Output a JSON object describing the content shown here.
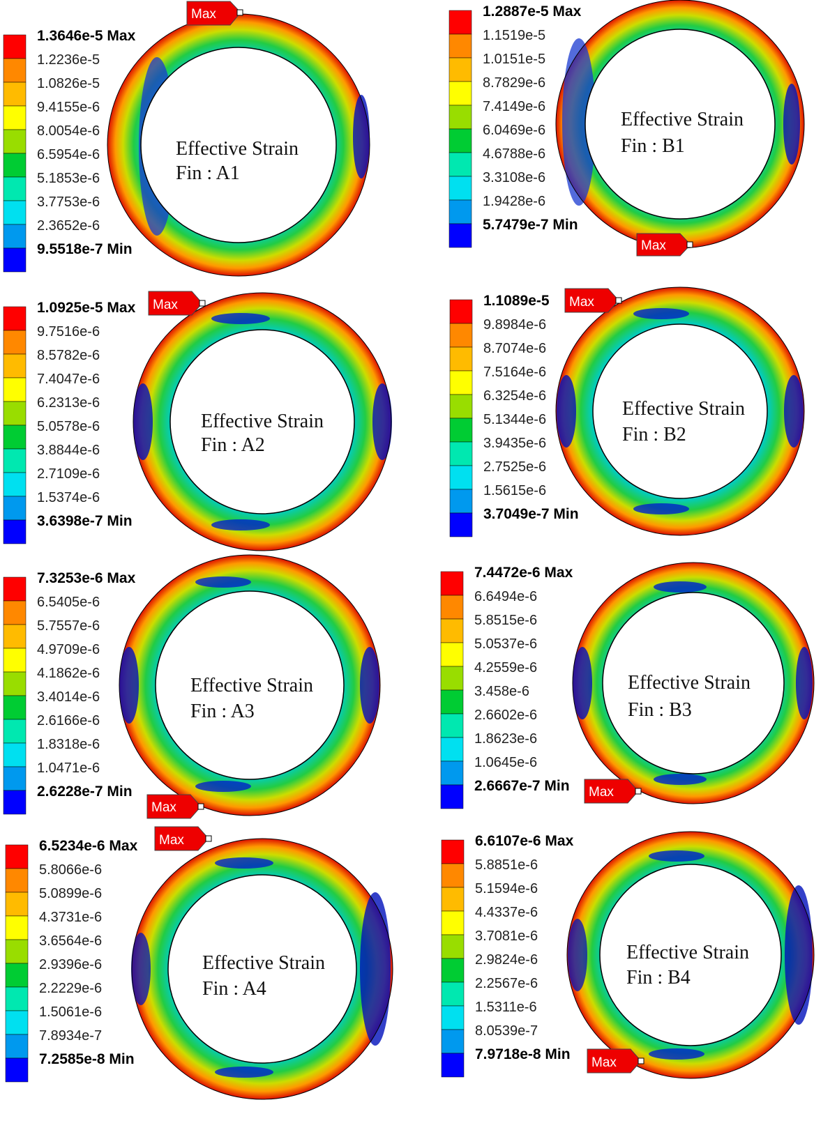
{
  "colors": [
    "#0000ff",
    "#0099ee",
    "#00e0f0",
    "#00e8b0",
    "#00cc33",
    "#99dd00",
    "#ffff00",
    "#ffbb00",
    "#ff8800",
    "#ff0000"
  ],
  "panels": [
    {
      "id": "A1",
      "title": "Effective Strain",
      "fin": "Fin : A1",
      "max_tag": "Max",
      "labels": [
        "1.3646e-5 Max",
        "1.2236e-5",
        "1.0826e-5",
        "9.4155e-6",
        "8.0054e-6",
        "6.5954e-6",
        "5.1853e-6",
        "3.7753e-6",
        "2.3652e-6",
        "9.5518e-7 Min"
      ]
    },
    {
      "id": "B1",
      "title": "Effective Strain",
      "fin": "Fin : B1",
      "max_tag": "Max",
      "labels": [
        "1.2887e-5 Max",
        "1.1519e-5",
        "1.0151e-5",
        "8.7829e-6",
        "7.4149e-6",
        "6.0469e-6",
        "4.6788e-6",
        "3.3108e-6",
        "1.9428e-6",
        "5.7479e-7 Min"
      ]
    },
    {
      "id": "A2",
      "title": "Effective Strain",
      "fin": "Fin : A2",
      "max_tag": "Max",
      "labels": [
        "1.0925e-5 Max",
        "9.7516e-6",
        "8.5782e-6",
        "7.4047e-6",
        "6.2313e-6",
        "5.0578e-6",
        "3.8844e-6",
        "2.7109e-6",
        "1.5374e-6",
        "3.6398e-7 Min"
      ]
    },
    {
      "id": "B2",
      "title": "Effective Strain",
      "fin": "Fin : B2",
      "max_tag": "Max",
      "labels": [
        "1.1089e-5",
        "9.8984e-6",
        "8.7074e-6",
        "7.5164e-6",
        "6.3254e-6",
        "5.1344e-6",
        "3.9435e-6",
        "2.7525e-6",
        "1.5615e-6",
        "3.7049e-7 Min"
      ]
    },
    {
      "id": "A3",
      "title": "Effective Strain",
      "fin": "Fin : A3",
      "max_tag": "Max",
      "labels": [
        "7.3253e-6 Max",
        "6.5405e-6",
        "5.7557e-6",
        "4.9709e-6",
        "4.1862e-6",
        "3.4014e-6",
        "2.6166e-6",
        "1.8318e-6",
        "1.0471e-6",
        "2.6228e-7 Min"
      ]
    },
    {
      "id": "B3",
      "title": "Effective Strain",
      "fin": "Fin : B3",
      "max_tag": "Max",
      "labels": [
        "7.4472e-6 Max",
        "6.6494e-6",
        "5.8515e-6",
        "5.0537e-6",
        "4.2559e-6",
        "3.458e-6",
        "2.6602e-6",
        "1.8623e-6",
        "1.0645e-6",
        "2.6667e-7 Min"
      ]
    },
    {
      "id": "A4",
      "title": "Effective Strain",
      "fin": "Fin : A4",
      "max_tag": "Max",
      "labels": [
        "6.5234e-6 Max",
        "5.8066e-6",
        "5.0899e-6",
        "4.3731e-6",
        "3.6564e-6",
        "2.9396e-6",
        "2.2229e-6",
        "1.5061e-6",
        "7.8934e-7",
        "7.2585e-8 Min"
      ]
    },
    {
      "id": "B4",
      "title": "Effective Strain",
      "fin": "Fin : B4",
      "max_tag": "Max",
      "labels": [
        "6.6107e-6 Max",
        "5.8851e-6",
        "5.1594e-6",
        "4.4337e-6",
        "3.7081e-6",
        "2.9824e-6",
        "2.2567e-6",
        "1.5311e-6",
        "8.0539e-7",
        "7.9718e-8 Min"
      ]
    }
  ]
}
